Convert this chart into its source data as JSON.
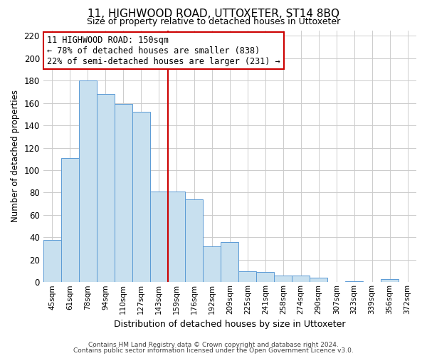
{
  "title": "11, HIGHWOOD ROAD, UTTOXETER, ST14 8BQ",
  "subtitle": "Size of property relative to detached houses in Uttoxeter",
  "xlabel": "Distribution of detached houses by size in Uttoxeter",
  "ylabel": "Number of detached properties",
  "bar_labels": [
    "45sqm",
    "61sqm",
    "78sqm",
    "94sqm",
    "110sqm",
    "127sqm",
    "143sqm",
    "159sqm",
    "176sqm",
    "192sqm",
    "209sqm",
    "225sqm",
    "241sqm",
    "258sqm",
    "274sqm",
    "290sqm",
    "307sqm",
    "323sqm",
    "339sqm",
    "356sqm",
    "372sqm"
  ],
  "bar_values": [
    38,
    111,
    180,
    168,
    159,
    152,
    81,
    81,
    74,
    32,
    36,
    10,
    9,
    6,
    6,
    4,
    0,
    1,
    0,
    3,
    0
  ],
  "bar_color": "#c8e0ef",
  "bar_edge_color": "#5b9bd5",
  "vline_color": "#cc0000",
  "ylim": [
    0,
    225
  ],
  "yticks": [
    0,
    20,
    40,
    60,
    80,
    100,
    120,
    140,
    160,
    180,
    200,
    220
  ],
  "annotation_title": "11 HIGHWOOD ROAD: 150sqm",
  "annotation_line1": "← 78% of detached houses are smaller (838)",
  "annotation_line2": "22% of semi-detached houses are larger (231) →",
  "annotation_box_color": "#ffffff",
  "annotation_box_edge": "#cc0000",
  "footer1": "Contains HM Land Registry data © Crown copyright and database right 2024.",
  "footer2": "Contains public sector information licensed under the Open Government Licence v3.0.",
  "bg_color": "#ffffff",
  "grid_color": "#cccccc"
}
